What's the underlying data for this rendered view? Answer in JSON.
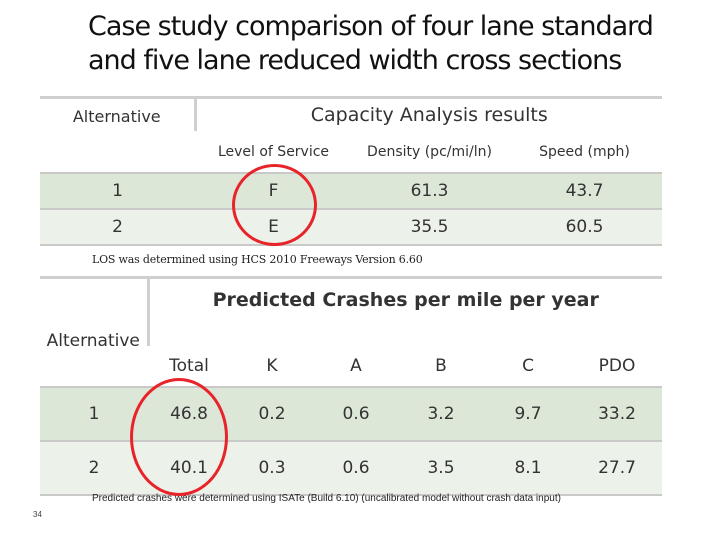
{
  "title": {
    "line1": "Case study comparison of four lane standard",
    "line2": "and five lane reduced width cross sections"
  },
  "capacity_table": {
    "alt_header": "Alternative",
    "group_header": "Capacity Analysis results",
    "columns": [
      "Level of Service",
      "Density (pc/mi/ln)",
      "Speed (mph)"
    ],
    "rows": [
      {
        "alt": "1",
        "los": "F",
        "density": "61.3",
        "speed": "43.7"
      },
      {
        "alt": "2",
        "los": "E",
        "density": "35.5",
        "speed": "60.5"
      }
    ],
    "note": "LOS was determined using HCS 2010 Freeways Version 6.60"
  },
  "crash_table": {
    "alt_header": "Alternative",
    "group_header": "Predicted Crashes per mile per year",
    "columns": [
      "Total",
      "K",
      "A",
      "B",
      "C",
      "PDO"
    ],
    "rows": [
      {
        "alt": "1",
        "values": [
          "46.8",
          "0.2",
          "0.6",
          "3.2",
          "9.7",
          "33.2"
        ]
      },
      {
        "alt": "2",
        "values": [
          "40.1",
          "0.3",
          "0.6",
          "3.5",
          "8.1",
          "27.7"
        ]
      }
    ],
    "note": "Predicted crashes were determined using ISATe (Build 6.10) (uncalibrated model without crash data input)"
  },
  "page_number": "34",
  "colors": {
    "highlight_circle": "#e8232a",
    "row_band_dark": "#dde7d8",
    "row_band_light": "#ecf2e9"
  }
}
